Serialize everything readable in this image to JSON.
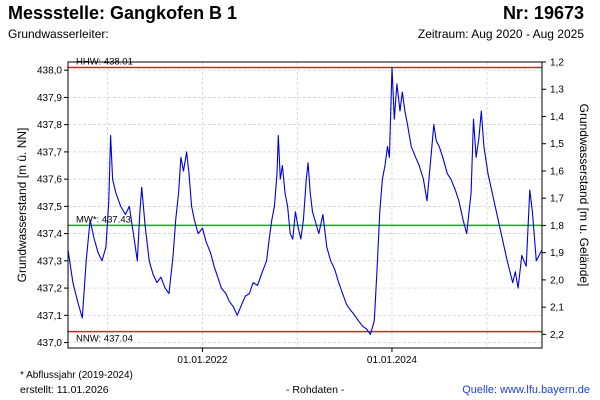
{
  "header": {
    "title": "Messstelle: Gangkofen B 1",
    "number": "Nr: 19673",
    "aquifer": "Grundwasserleiter:",
    "period": "Zeitraum: Aug 2020 - Aug 2025"
  },
  "footer": {
    "footnote": "* Abflussjahr (2019-2024)",
    "created": "erstellt:  11.01.2026",
    "rohdaten": "- Rohdaten -",
    "source": "Quelle:  www.lfu.bayern.de"
  },
  "colors": {
    "series": "#0000dd",
    "extreme_lines": "#e02020",
    "mean_line": "#2a9a2a",
    "grid": "#cccccc"
  },
  "chart_data": {
    "type": "line",
    "ylabel": "Grundwasserstand [m ü. NN]",
    "y2label": "Grundwasserstand [m u. Gelände]",
    "xlim": [
      "2020-08-01",
      "2025-08-01"
    ],
    "ylim": [
      436.98,
      438.03
    ],
    "yticks": [
      "437,0",
      "437,1",
      "437,2",
      "437,3",
      "437,4",
      "437,5",
      "437,6",
      "437,7",
      "437,8",
      "437,9",
      "438,0"
    ],
    "y2_offset": 439.23,
    "y2ticks": [
      "1,2",
      "1,3",
      "1,4",
      "1,5",
      "1,6",
      "1,7",
      "1,8",
      "1,9",
      "2,0",
      "2,1",
      "2,2"
    ],
    "xticks": [
      {
        "date": "2022-01-01",
        "label": "01.01.2022"
      },
      {
        "date": "2024-01-01",
        "label": "01.01.2024"
      }
    ],
    "grid": true,
    "reference_lines": [
      {
        "name": "HHW",
        "value": 438.01,
        "label": "HHW: 438.01"
      },
      {
        "name": "MW",
        "value": 437.43,
        "label": "MW*: 437.43"
      },
      {
        "name": "NNW",
        "value": 437.04,
        "label": "NNW: 437.04"
      }
    ],
    "series": [
      {
        "points": [
          [
            "2020-08-01",
            437.34
          ],
          [
            "2020-08-20",
            437.22
          ],
          [
            "2020-09-10",
            437.14
          ],
          [
            "2020-09-25",
            437.09
          ],
          [
            "2020-10-10",
            437.3
          ],
          [
            "2020-10-25",
            437.45
          ],
          [
            "2020-11-10",
            437.38
          ],
          [
            "2020-11-25",
            437.33
          ],
          [
            "2020-12-10",
            437.3
          ],
          [
            "2020-12-25",
            437.35
          ],
          [
            "2021-01-05",
            437.52
          ],
          [
            "2021-01-12",
            437.76
          ],
          [
            "2021-01-20",
            437.6
          ],
          [
            "2021-02-01",
            437.55
          ],
          [
            "2021-02-20",
            437.5
          ],
          [
            "2021-03-10",
            437.47
          ],
          [
            "2021-03-25",
            437.5
          ],
          [
            "2021-04-10",
            437.4
          ],
          [
            "2021-04-25",
            437.3
          ],
          [
            "2021-05-05",
            437.48
          ],
          [
            "2021-05-12",
            437.57
          ],
          [
            "2021-05-25",
            437.43
          ],
          [
            "2021-06-10",
            437.3
          ],
          [
            "2021-06-25",
            437.25
          ],
          [
            "2021-07-10",
            437.22
          ],
          [
            "2021-07-25",
            437.24
          ],
          [
            "2021-08-10",
            437.2
          ],
          [
            "2021-08-25",
            437.18
          ],
          [
            "2021-09-10",
            437.32
          ],
          [
            "2021-09-20",
            437.45
          ],
          [
            "2021-10-01",
            437.55
          ],
          [
            "2021-10-10",
            437.68
          ],
          [
            "2021-10-20",
            437.63
          ],
          [
            "2021-11-01",
            437.7
          ],
          [
            "2021-11-10",
            437.62
          ],
          [
            "2021-11-20",
            437.5
          ],
          [
            "2021-12-01",
            437.45
          ],
          [
            "2021-12-15",
            437.4
          ],
          [
            "2022-01-01",
            437.42
          ],
          [
            "2022-01-15",
            437.37
          ],
          [
            "2022-02-01",
            437.33
          ],
          [
            "2022-02-15",
            437.28
          ],
          [
            "2022-03-01",
            437.24
          ],
          [
            "2022-03-15",
            437.2
          ],
          [
            "2022-04-01",
            437.18
          ],
          [
            "2022-04-15",
            437.15
          ],
          [
            "2022-05-01",
            437.13
          ],
          [
            "2022-05-15",
            437.1
          ],
          [
            "2022-06-01",
            437.14
          ],
          [
            "2022-06-15",
            437.17
          ],
          [
            "2022-07-01",
            437.18
          ],
          [
            "2022-07-15",
            437.22
          ],
          [
            "2022-08-01",
            437.21
          ],
          [
            "2022-08-20",
            437.26
          ],
          [
            "2022-09-05",
            437.3
          ],
          [
            "2022-09-15",
            437.38
          ],
          [
            "2022-09-25",
            437.45
          ],
          [
            "2022-10-05",
            437.5
          ],
          [
            "2022-10-15",
            437.62
          ],
          [
            "2022-10-20",
            437.76
          ],
          [
            "2022-10-28",
            437.6
          ],
          [
            "2022-11-05",
            437.65
          ],
          [
            "2022-11-15",
            437.55
          ],
          [
            "2022-11-25",
            437.5
          ],
          [
            "2022-12-05",
            437.4
          ],
          [
            "2022-12-15",
            437.38
          ],
          [
            "2022-12-25",
            437.48
          ],
          [
            "2023-01-05",
            437.42
          ],
          [
            "2023-01-15",
            437.38
          ],
          [
            "2023-01-25",
            437.45
          ],
          [
            "2023-02-05",
            437.6
          ],
          [
            "2023-02-12",
            437.66
          ],
          [
            "2023-02-20",
            437.55
          ],
          [
            "2023-03-01",
            437.48
          ],
          [
            "2023-03-10",
            437.45
          ],
          [
            "2023-03-25",
            437.4
          ],
          [
            "2023-04-10",
            437.47
          ],
          [
            "2023-04-25",
            437.35
          ],
          [
            "2023-05-10",
            437.3
          ],
          [
            "2023-05-25",
            437.27
          ],
          [
            "2023-06-10",
            437.22
          ],
          [
            "2023-06-25",
            437.18
          ],
          [
            "2023-07-10",
            437.14
          ],
          [
            "2023-07-25",
            437.12
          ],
          [
            "2023-08-10",
            437.1
          ],
          [
            "2023-08-25",
            437.08
          ],
          [
            "2023-09-10",
            437.06
          ],
          [
            "2023-09-25",
            437.05
          ],
          [
            "2023-10-10",
            437.03
          ],
          [
            "2023-10-25",
            437.08
          ],
          [
            "2023-11-05",
            437.28
          ],
          [
            "2023-11-15",
            437.48
          ],
          [
            "2023-11-25",
            437.6
          ],
          [
            "2023-12-05",
            437.65
          ],
          [
            "2023-12-15",
            437.72
          ],
          [
            "2023-12-22",
            437.68
          ],
          [
            "2024-01-01",
            438.01
          ],
          [
            "2024-01-10",
            437.82
          ],
          [
            "2024-01-20",
            437.95
          ],
          [
            "2024-02-01",
            437.85
          ],
          [
            "2024-02-10",
            437.92
          ],
          [
            "2024-02-20",
            437.85
          ],
          [
            "2024-03-01",
            437.8
          ],
          [
            "2024-03-15",
            437.72
          ],
          [
            "2024-04-01",
            437.68
          ],
          [
            "2024-04-15",
            437.65
          ],
          [
            "2024-05-01",
            437.6
          ],
          [
            "2024-05-15",
            437.52
          ],
          [
            "2024-06-01",
            437.7
          ],
          [
            "2024-06-10",
            437.8
          ],
          [
            "2024-06-20",
            437.74
          ],
          [
            "2024-07-01",
            437.72
          ],
          [
            "2024-07-15",
            437.68
          ],
          [
            "2024-08-01",
            437.62
          ],
          [
            "2024-08-15",
            437.6
          ],
          [
            "2024-09-01",
            437.56
          ],
          [
            "2024-09-15",
            437.52
          ],
          [
            "2024-10-01",
            437.45
          ],
          [
            "2024-10-15",
            437.4
          ],
          [
            "2024-11-01",
            437.55
          ],
          [
            "2024-11-10",
            437.82
          ],
          [
            "2024-11-20",
            437.68
          ],
          [
            "2024-12-01",
            437.75
          ],
          [
            "2024-12-10",
            437.85
          ],
          [
            "2024-12-20",
            437.72
          ],
          [
            "2025-01-05",
            437.62
          ],
          [
            "2025-03-20",
            437.3
          ],
          [
            "2025-04-10",
            437.22
          ],
          [
            "2025-04-20",
            437.26
          ],
          [
            "2025-05-01",
            437.2
          ],
          [
            "2025-05-15",
            437.32
          ],
          [
            "2025-06-01",
            437.28
          ],
          [
            "2025-06-15",
            437.56
          ],
          [
            "2025-06-25",
            437.48
          ],
          [
            "2025-07-10",
            437.3
          ],
          [
            "2025-08-01",
            437.34
          ]
        ]
      }
    ]
  }
}
